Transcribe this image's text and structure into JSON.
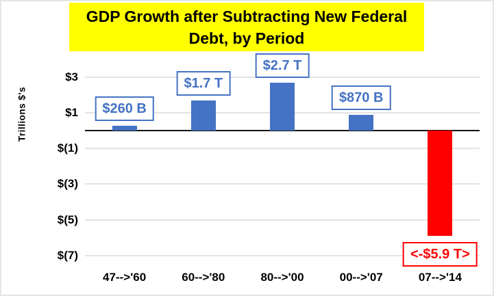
{
  "chart_data": {
    "type": "bar",
    "title": "GDP Growth after Subtracting New Federal Debt, by Period",
    "title_lines": [
      "GDP Growth after Subtracting New Federal",
      "Debt, by Period"
    ],
    "ylabel": "Trillions $'s",
    "xlabel": "",
    "categories": [
      "47-->'60",
      "60-->'80",
      "80-->'00",
      "00-->'07",
      "07-->'14"
    ],
    "values": [
      0.26,
      1.7,
      2.7,
      0.87,
      -5.9
    ],
    "bar_labels": [
      "$260 B",
      "$1.7 T",
      "$2.7 T",
      "$870 B",
      "<-$5.9 T>"
    ],
    "bar_colors": [
      "#4472C4",
      "#4472C4",
      "#4472C4",
      "#4472C4",
      "#FF0000"
    ],
    "label_colors": [
      "#4472C4",
      "#4472C4",
      "#4472C4",
      "#4472C4",
      "#FF0000"
    ],
    "y_ticks": [
      {
        "value": 3,
        "label": "$3"
      },
      {
        "value": 1,
        "label": "$1"
      },
      {
        "value": -1,
        "label": "$(1)"
      },
      {
        "value": -3,
        "label": "$(3)"
      },
      {
        "value": -5,
        "label": "$(5)"
      },
      {
        "value": -7,
        "label": "$(7)"
      }
    ],
    "ylim": [
      -7.5,
      4
    ],
    "grid": true,
    "legend": false,
    "colors": {
      "title_bg": "#FFFF00",
      "title_text": "#000000",
      "positive_bar": "#4472C4",
      "negative_bar": "#FF0000",
      "gridline": "#E3E3E3",
      "axis_line": "#111111",
      "background": "#FFFFFF"
    }
  }
}
